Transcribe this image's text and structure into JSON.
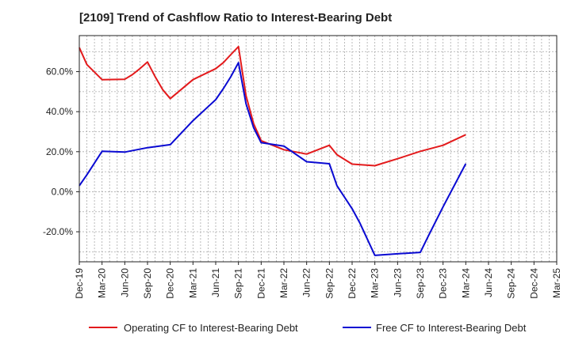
{
  "chart_data": {
    "type": "line",
    "title": "[2109]  Trend of Cashflow Ratio to Interest-Bearing Debt",
    "xlabel": "",
    "ylabel": "",
    "x_ticks": [
      "Dec-19",
      "Mar-20",
      "Jun-20",
      "Sep-20",
      "Dec-20",
      "Mar-21",
      "Jun-21",
      "Sep-21",
      "Dec-21",
      "Mar-22",
      "Jun-22",
      "Sep-22",
      "Dec-22",
      "Mar-23",
      "Jun-23",
      "Sep-23",
      "Dec-23",
      "Mar-24",
      "Jun-24",
      "Sep-24",
      "Dec-24",
      "Mar-25"
    ],
    "y_ticks": [
      "60.0%",
      "40.0%",
      "20.0%",
      "0.0%",
      "-20.0%"
    ],
    "y_tick_values": [
      60,
      40,
      20,
      0,
      -20
    ],
    "ylim": [
      -35,
      78
    ],
    "grid": true,
    "legend_position": "bottom",
    "series": [
      {
        "name": "Operating CF to Interest-Bearing Debt",
        "color": "#e31a1c",
        "points": [
          [
            "Dec-19",
            72.0
          ],
          [
            "Jan-20",
            63.5
          ],
          [
            "Mar-20",
            56.0
          ],
          [
            "Jun-20",
            56.2
          ],
          [
            "Jul-20",
            58.5
          ],
          [
            "Aug-20",
            61.5
          ],
          [
            "Sep-20",
            64.8
          ],
          [
            "Oct-20",
            57.5
          ],
          [
            "Nov-20",
            51.0
          ],
          [
            "Dec-20",
            46.5
          ],
          [
            "Mar-21",
            56.0
          ],
          [
            "Jun-21",
            61.5
          ],
          [
            "Jul-21",
            64.5
          ],
          [
            "Aug-21",
            68.5
          ],
          [
            "Sep-21",
            72.5
          ],
          [
            "Oct-21",
            48.0
          ],
          [
            "Nov-21",
            34.0
          ],
          [
            "Dec-21",
            25.5
          ],
          [
            "Mar-22",
            21.0
          ],
          [
            "Jun-22",
            18.8
          ],
          [
            "Sep-22",
            23.2
          ],
          [
            "Oct-22",
            18.5
          ],
          [
            "Dec-22",
            13.8
          ],
          [
            "Mar-23",
            13.0
          ],
          [
            "Jun-23",
            16.5
          ],
          [
            "Sep-23",
            20.2
          ],
          [
            "Dec-23",
            23.2
          ],
          [
            "Mar-24",
            28.5
          ]
        ]
      },
      {
        "name": "Free CF to Interest-Bearing Debt",
        "color": "#0a0ad2",
        "points": [
          [
            "Dec-19",
            3.0
          ],
          [
            "Jan-20",
            8.5
          ],
          [
            "Mar-20",
            20.2
          ],
          [
            "Jun-20",
            19.8
          ],
          [
            "Sep-20",
            22.0
          ],
          [
            "Dec-20",
            23.5
          ],
          [
            "Mar-21",
            35.5
          ],
          [
            "Jun-21",
            46.0
          ],
          [
            "Jul-21",
            51.5
          ],
          [
            "Aug-21",
            57.5
          ],
          [
            "Sep-21",
            64.5
          ],
          [
            "Oct-21",
            44.0
          ],
          [
            "Nov-21",
            32.0
          ],
          [
            "Dec-21",
            24.5
          ],
          [
            "Mar-22",
            22.8
          ],
          [
            "Jun-22",
            15.0
          ],
          [
            "Sep-22",
            14.0
          ],
          [
            "Oct-22",
            3.0
          ],
          [
            "Dec-22",
            -8.5
          ],
          [
            "Jan-23",
            -15.5
          ],
          [
            "Mar-23",
            -31.8
          ],
          [
            "Jun-23",
            -31.0
          ],
          [
            "Sep-23",
            -30.3
          ],
          [
            "Oct-23",
            -22.5
          ],
          [
            "Dec-23",
            -7.5
          ],
          [
            "Mar-24",
            14.0
          ]
        ]
      }
    ]
  }
}
